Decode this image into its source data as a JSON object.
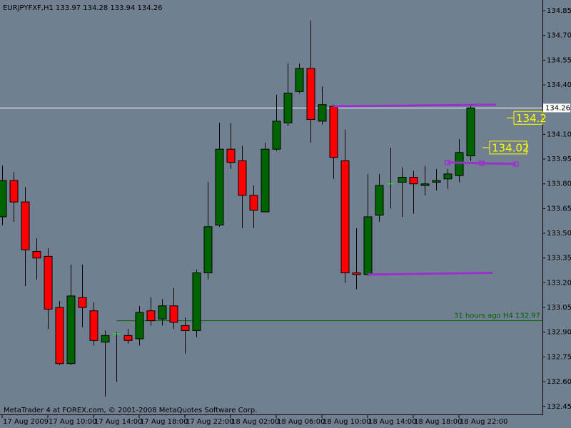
{
  "chart_data": {
    "type": "candlestick",
    "title": "EURJPYFXF,H1  133.97 134.28 133.94 134.26",
    "footer": "MetaTrader 4 at FOREX.com, © 2001-2008 MetaQuotes Software Corp.",
    "categories": [
      "17 Aug 2009",
      null,
      null,
      null,
      "17 Aug 10:00",
      null,
      null,
      null,
      "17 Aug 14:00",
      null,
      null,
      null,
      "17 Aug 18:00",
      null,
      null,
      null,
      "17 Aug 22:00",
      null,
      null,
      null,
      "18 Aug 02:00",
      null,
      null,
      null,
      "18 Aug 06:00",
      null,
      null,
      null,
      "18 Aug 10:00",
      null,
      null,
      null,
      "18 Aug 14:00",
      null,
      null,
      null,
      "18 Aug 18:00",
      null,
      null,
      null,
      "18 Aug 22:00",
      null
    ],
    "open": [
      133.6,
      133.82,
      133.69,
      133.39,
      133.36,
      133.05,
      132.71,
      133.11,
      133.03,
      132.84,
      132.89,
      132.88,
      132.86,
      133.03,
      132.98,
      133.06,
      132.94,
      132.91,
      133.26,
      133.55,
      134.01,
      133.94,
      133.73,
      133.63,
      134.01,
      134.17,
      134.36,
      134.5,
      134.18,
      134.27,
      133.94,
      133.26,
      133.25,
      133.61,
      133.8,
      133.81,
      133.84,
      133.79,
      133.81,
      133.83,
      133.85,
      133.97
    ],
    "high": [
      133.91,
      133.87,
      133.78,
      133.47,
      133.41,
      133.09,
      133.31,
      133.31,
      133.08,
      132.91,
      132.9,
      132.92,
      133.06,
      133.11,
      133.1,
      133.17,
      132.99,
      133.28,
      133.81,
      134.17,
      134.17,
      134.03,
      133.79,
      134.05,
      134.34,
      134.53,
      134.53,
      134.79,
      134.39,
      134.28,
      134.13,
      133.53,
      133.86,
      133.86,
      134.02,
      133.9,
      133.88,
      133.91,
      133.89,
      133.89,
      134.07,
      134.28
    ],
    "low": [
      133.55,
      133.57,
      133.18,
      133.22,
      132.92,
      132.7,
      132.7,
      132.93,
      132.82,
      132.51,
      132.6,
      132.83,
      132.82,
      132.94,
      132.94,
      132.92,
      132.77,
      132.87,
      133.22,
      133.54,
      133.89,
      133.53,
      133.53,
      133.63,
      134.0,
      134.15,
      134.35,
      134.05,
      134.16,
      133.83,
      133.2,
      133.16,
      133.24,
      133.57,
      133.65,
      133.6,
      133.62,
      133.73,
      133.76,
      133.77,
      133.81,
      133.94
    ],
    "close": [
      133.82,
      133.69,
      133.4,
      133.35,
      133.04,
      132.71,
      133.12,
      133.05,
      132.85,
      132.88,
      132.89,
      132.85,
      133.02,
      132.97,
      133.06,
      132.96,
      132.91,
      133.26,
      133.54,
      134.01,
      133.93,
      133.73,
      133.64,
      134.01,
      134.18,
      134.35,
      134.5,
      134.19,
      134.28,
      133.96,
      133.26,
      133.25,
      133.6,
      133.79,
      133.8,
      133.84,
      133.8,
      133.8,
      133.82,
      133.86,
      133.99,
      134.26
    ],
    "colors": {
      "background": "#708090",
      "up": "#006400",
      "down": "#ff0000",
      "wick": "#000000",
      "doji": "#00ff00",
      "text": "#000000",
      "trend": "#9932cc",
      "level": "#006400",
      "price_label": "#ffff00",
      "last_price": "#ffffff"
    },
    "ylim": [
      132.41,
      134.915
    ],
    "yticks": [
      132.45,
      {
        "value": 132.6,
        "label": "132.60"
      },
      132.75,
      {
        "value": 132.9,
        "label": "132.90"
      },
      133.05,
      {
        "value": 133.2,
        "label": "133.20"
      },
      133.35,
      {
        "value": 133.5,
        "label": "133.50"
      },
      133.65,
      {
        "value": 133.8,
        "label": "133.80"
      },
      133.95,
      {
        "value": 134.1,
        "label": "134.10"
      },
      {
        "value": 134.4,
        "label": "134.40"
      },
      134.55,
      {
        "value": 134.7,
        "label": "134.70"
      },
      134.85
    ],
    "grid": false,
    "last_price": 134.26,
    "level_line": {
      "value": 132.97,
      "label": "31 hours ago H4 132.97"
    },
    "trend_lines": [
      [
        134.27,
        134.28
      ],
      [
        133.25,
        133.26
      ],
      [
        133.93,
        133.92
      ]
    ],
    "price_labels": [
      134.2,
      134.02
    ]
  }
}
